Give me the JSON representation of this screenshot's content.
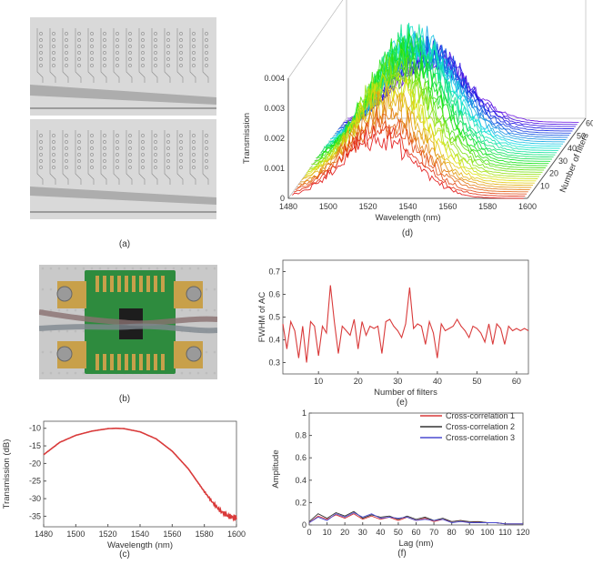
{
  "labels": {
    "a": "(a)",
    "b": "(b)",
    "c": "(c)",
    "d": "(d)",
    "e": "(e)",
    "f": "(f)"
  },
  "colors": {
    "red": "#d93a3a",
    "black": "#333333",
    "blue": "#4a4ad0",
    "pcb_green": "#2e8b3e",
    "gold": "#c8a04a"
  },
  "chart_data": [
    {
      "id": "c",
      "type": "line",
      "xlabel": "Wavelength (nm)",
      "ylabel": "Transmission (dB)",
      "xlim": [
        1480,
        1600
      ],
      "ylim": [
        -38,
        -8
      ],
      "xticks": [
        1480,
        1500,
        1520,
        1540,
        1560,
        1580,
        1600
      ],
      "yticks": [
        -10,
        -15,
        -20,
        -25,
        -30,
        -35
      ],
      "x": [
        1480,
        1490,
        1500,
        1510,
        1520,
        1525,
        1530,
        1540,
        1550,
        1560,
        1570,
        1580,
        1585,
        1590,
        1595,
        1600
      ],
      "y": [
        -17.5,
        -14,
        -12,
        -10.8,
        -10.1,
        -10,
        -10.1,
        -11,
        -13,
        -16.5,
        -21.5,
        -28,
        -31,
        -33.5,
        -35,
        -35.5
      ]
    },
    {
      "id": "d",
      "type": "line",
      "xlabel": "Wavelength (nm)",
      "ylabel": "Transmission",
      "zlabel": "Number of filters",
      "xlim": [
        1480,
        1600
      ],
      "xticks": [
        1480,
        1500,
        1520,
        1540,
        1560,
        1580,
        1600
      ],
      "yticks": [
        "0",
        "0.001",
        "0.002",
        "0.003",
        "0.004"
      ],
      "zticks": [
        10,
        20,
        30,
        40,
        50,
        60
      ],
      "peak_wavelength": 1525,
      "filters": 64,
      "peak_transmission": 0.004
    },
    {
      "id": "e",
      "type": "line",
      "xlabel": "Number of filters",
      "ylabel": "FWHM of AC",
      "xlim": [
        1,
        63
      ],
      "ylim": [
        0.25,
        0.75
      ],
      "xticks": [
        10,
        20,
        30,
        40,
        50,
        60
      ],
      "yticks": [
        0.3,
        0.4,
        0.5,
        0.6,
        0.7
      ],
      "x": [
        1,
        2,
        3,
        4,
        5,
        6,
        7,
        8,
        9,
        10,
        11,
        12,
        13,
        14,
        15,
        16,
        17,
        18,
        19,
        20,
        21,
        22,
        23,
        24,
        25,
        26,
        27,
        28,
        29,
        30,
        31,
        32,
        33,
        34,
        35,
        36,
        37,
        38,
        39,
        40,
        41,
        42,
        43,
        44,
        45,
        46,
        47,
        48,
        49,
        50,
        51,
        52,
        53,
        54,
        55,
        56,
        57,
        58,
        59,
        60,
        61,
        62,
        63
      ],
      "values": [
        0.47,
        0.36,
        0.48,
        0.44,
        0.32,
        0.46,
        0.3,
        0.48,
        0.46,
        0.33,
        0.46,
        0.43,
        0.64,
        0.48,
        0.34,
        0.46,
        0.44,
        0.42,
        0.49,
        0.36,
        0.48,
        0.42,
        0.46,
        0.45,
        0.46,
        0.34,
        0.48,
        0.49,
        0.46,
        0.44,
        0.41,
        0.47,
        0.63,
        0.45,
        0.47,
        0.46,
        0.38,
        0.48,
        0.43,
        0.32,
        0.47,
        0.44,
        0.45,
        0.46,
        0.49,
        0.46,
        0.44,
        0.41,
        0.46,
        0.45,
        0.43,
        0.39,
        0.47,
        0.38,
        0.47,
        0.45,
        0.38,
        0.46,
        0.44,
        0.45,
        0.44,
        0.45,
        0.44
      ]
    },
    {
      "id": "f",
      "type": "line",
      "xlabel": "Lag (nm)",
      "ylabel": "Amplitude",
      "xlim": [
        0,
        120
      ],
      "ylim": [
        0,
        1.0
      ],
      "xticks": [
        0,
        10,
        20,
        30,
        40,
        50,
        60,
        70,
        80,
        90,
        100,
        110,
        120
      ],
      "yticks": [
        0,
        0.2,
        0.4,
        0.6,
        0.8,
        1.0
      ],
      "legend": "top-right",
      "series": [
        {
          "name": "Cross-correlation 1",
          "color": "#d93a3a",
          "values": [
            0.02,
            0.08,
            0.05,
            0.09,
            0.06,
            0.1,
            0.05,
            0.08,
            0.05,
            0.07,
            0.04,
            0.07,
            0.04,
            0.06,
            0.03,
            0.05,
            0.03,
            0.04,
            0.02,
            0.03,
            0.02,
            0.02,
            0.01,
            0.01,
            0.01
          ]
        },
        {
          "name": "Cross-correlation 2",
          "color": "#333333",
          "values": [
            0.03,
            0.1,
            0.06,
            0.11,
            0.08,
            0.12,
            0.06,
            0.09,
            0.07,
            0.08,
            0.05,
            0.08,
            0.05,
            0.07,
            0.04,
            0.06,
            0.03,
            0.04,
            0.03,
            0.03,
            0.02,
            0.02,
            0.01,
            0.01,
            0.01
          ]
        },
        {
          "name": "Cross-correlation 3",
          "color": "#4a4ad0",
          "values": [
            0.02,
            0.07,
            0.04,
            0.1,
            0.07,
            0.11,
            0.07,
            0.1,
            0.06,
            0.07,
            0.06,
            0.07,
            0.04,
            0.05,
            0.04,
            0.05,
            0.02,
            0.03,
            0.02,
            0.02,
            0.02,
            0.02,
            0.01,
            0.01,
            0.01
          ]
        }
      ]
    }
  ]
}
